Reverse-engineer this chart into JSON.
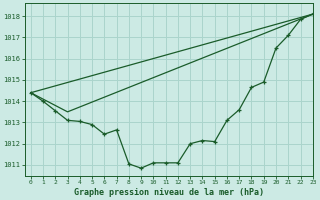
{
  "title": "Graphe pression niveau de la mer (hPa)",
  "bg_color": "#cceae4",
  "grid_color": "#aad4cc",
  "line_color": "#1a5c2a",
  "xlim": [
    -0.5,
    23
  ],
  "ylim": [
    1010.5,
    1018.6
  ],
  "yticks": [
    1011,
    1012,
    1013,
    1014,
    1015,
    1016,
    1017,
    1018
  ],
  "xticks": [
    0,
    1,
    2,
    3,
    4,
    5,
    6,
    7,
    8,
    9,
    10,
    11,
    12,
    13,
    14,
    15,
    16,
    17,
    18,
    19,
    20,
    21,
    22,
    23
  ],
  "line1_x": [
    0,
    23
  ],
  "line1_y": [
    1014.4,
    1018.1
  ],
  "line2_x": [
    0,
    3,
    23
  ],
  "line2_y": [
    1014.4,
    1013.5,
    1018.1
  ],
  "line3_x": [
    0,
    1,
    2,
    3,
    4,
    5,
    6,
    7,
    8,
    9,
    10,
    11,
    12,
    13,
    14,
    15,
    16,
    17,
    18,
    19,
    20,
    21,
    22,
    23
  ],
  "line3_y": [
    1014.4,
    1014.0,
    1013.55,
    1013.1,
    1013.05,
    1012.9,
    1012.45,
    1012.65,
    1011.05,
    1010.85,
    1011.1,
    1011.1,
    1011.1,
    1012.0,
    1012.15,
    1012.1,
    1013.1,
    1013.6,
    1014.65,
    1014.9,
    1016.5,
    1017.1,
    1017.85,
    1018.1
  ]
}
